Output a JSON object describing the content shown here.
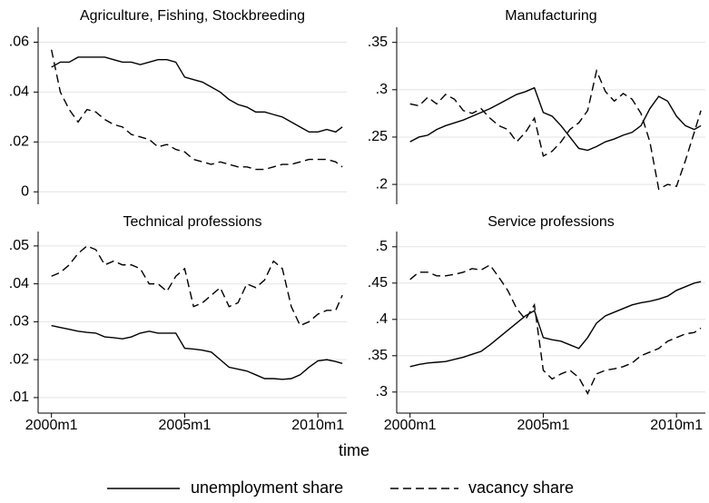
{
  "chart_data": [
    {
      "type": "line",
      "title": "Agriculture, Fishing, Stockbreeding",
      "x": [
        "2000m1",
        "2000m5",
        "2000m9",
        "2001m1",
        "2001m5",
        "2001m9",
        "2002m1",
        "2002m5",
        "2002m9",
        "2003m1",
        "2003m5",
        "2003m9",
        "2004m1",
        "2004m5",
        "2004m9",
        "2005m1",
        "2005m5",
        "2005m9",
        "2006m1",
        "2006m5",
        "2006m9",
        "2007m1",
        "2007m5",
        "2007m9",
        "2008m1",
        "2008m5",
        "2008m9",
        "2009m1",
        "2009m5",
        "2009m9",
        "2010m1",
        "2010m5",
        "2010m9",
        "2010m12"
      ],
      "xlim": [
        "1999m7",
        "2011m2"
      ],
      "ylim": [
        -0.005,
        0.066
      ],
      "yticks": [
        0,
        {
          "value": 0.02,
          "label": ".02"
        },
        {
          "value": 0.04,
          "label": ".04"
        },
        {
          "value": 0.06,
          "label": ".06"
        }
      ],
      "grid": true,
      "series": [
        {
          "name": "unemployment share",
          "color": "#000000",
          "line_style": "solid",
          "values": [
            0.05,
            0.052,
            0.052,
            0.054,
            0.054,
            0.054,
            0.054,
            0.053,
            0.052,
            0.052,
            0.051,
            0.052,
            0.053,
            0.053,
            0.052,
            0.046,
            0.045,
            0.044,
            0.042,
            0.04,
            0.037,
            0.035,
            0.034,
            0.032,
            0.032,
            0.031,
            0.03,
            0.028,
            0.026,
            0.024,
            0.024,
            0.025,
            0.024,
            0.026
          ]
        },
        {
          "name": "vacancy share",
          "color": "#000000",
          "line_style": "dashed",
          "values": [
            0.057,
            0.04,
            0.033,
            0.028,
            0.033,
            0.032,
            0.029,
            0.027,
            0.026,
            0.023,
            0.022,
            0.021,
            0.018,
            0.019,
            0.017,
            0.016,
            0.013,
            0.012,
            0.011,
            0.012,
            0.011,
            0.01,
            0.01,
            0.009,
            0.009,
            0.01,
            0.011,
            0.011,
            0.012,
            0.013,
            0.013,
            0.013,
            0.012,
            0.01
          ]
        }
      ]
    },
    {
      "type": "line",
      "title": "Manufacturing",
      "x": [
        "2000m1",
        "2000m5",
        "2000m9",
        "2001m1",
        "2001m5",
        "2001m9",
        "2002m1",
        "2002m5",
        "2002m9",
        "2003m1",
        "2003m5",
        "2003m9",
        "2004m1",
        "2004m5",
        "2004m9",
        "2005m1",
        "2005m5",
        "2005m9",
        "2006m1",
        "2006m5",
        "2006m9",
        "2007m1",
        "2007m5",
        "2007m9",
        "2008m1",
        "2008m5",
        "2008m9",
        "2009m1",
        "2009m5",
        "2009m9",
        "2010m1",
        "2010m5",
        "2010m9",
        "2010m12"
      ],
      "xlim": [
        "1999m7",
        "2011m2"
      ],
      "ylim": [
        0.179,
        0.366
      ],
      "yticks": [
        {
          "value": 0.2,
          "label": ".2"
        },
        {
          "value": 0.25,
          "label": ".25"
        },
        {
          "value": 0.3,
          "label": ".3"
        },
        {
          "value": 0.35,
          "label": ".35"
        }
      ],
      "grid": true,
      "series": [
        {
          "name": "unemployment share",
          "color": "#000000",
          "line_style": "solid",
          "values": [
            0.245,
            0.25,
            0.252,
            0.258,
            0.262,
            0.265,
            0.268,
            0.272,
            0.276,
            0.28,
            0.285,
            0.29,
            0.295,
            0.298,
            0.302,
            0.276,
            0.272,
            0.262,
            0.25,
            0.238,
            0.236,
            0.24,
            0.245,
            0.248,
            0.252,
            0.255,
            0.262,
            0.28,
            0.293,
            0.288,
            0.272,
            0.262,
            0.258,
            0.262
          ]
        },
        {
          "name": "vacancy share",
          "color": "#000000",
          "line_style": "dashed",
          "values": [
            0.285,
            0.283,
            0.292,
            0.285,
            0.295,
            0.29,
            0.278,
            0.275,
            0.28,
            0.27,
            0.262,
            0.258,
            0.245,
            0.255,
            0.27,
            0.23,
            0.235,
            0.245,
            0.258,
            0.265,
            0.278,
            0.32,
            0.298,
            0.288,
            0.296,
            0.29,
            0.275,
            0.245,
            0.195,
            0.2,
            0.198,
            0.225,
            0.255,
            0.278
          ]
        }
      ]
    },
    {
      "type": "line",
      "title": "Technical professions",
      "x": [
        "2000m1",
        "2000m5",
        "2000m9",
        "2001m1",
        "2001m5",
        "2001m9",
        "2002m1",
        "2002m5",
        "2002m9",
        "2003m1",
        "2003m5",
        "2003m9",
        "2004m1",
        "2004m5",
        "2004m9",
        "2005m1",
        "2005m5",
        "2005m9",
        "2006m1",
        "2006m5",
        "2006m9",
        "2007m1",
        "2007m5",
        "2007m9",
        "2008m1",
        "2008m5",
        "2008m9",
        "2009m1",
        "2009m5",
        "2009m9",
        "2010m1",
        "2010m5",
        "2010m9",
        "2010m12"
      ],
      "xlim": [
        "1999m7",
        "2011m2"
      ],
      "xticks": [
        "2000m1",
        "2005m1",
        "2010m1"
      ],
      "ylim": [
        0.0059,
        0.0538
      ],
      "yticks": [
        {
          "value": 0.01,
          "label": ".01"
        },
        {
          "value": 0.02,
          "label": ".02"
        },
        {
          "value": 0.03,
          "label": ".03"
        },
        {
          "value": 0.04,
          "label": ".04"
        },
        {
          "value": 0.05,
          "label": ".05"
        }
      ],
      "grid": true,
      "series": [
        {
          "name": "unemployment share",
          "color": "#000000",
          "line_style": "solid",
          "values": [
            0.029,
            0.0285,
            0.028,
            0.0275,
            0.0272,
            0.027,
            0.026,
            0.0258,
            0.0255,
            0.026,
            0.027,
            0.0275,
            0.027,
            0.027,
            0.027,
            0.023,
            0.0228,
            0.0225,
            0.022,
            0.02,
            0.018,
            0.0175,
            0.017,
            0.016,
            0.015,
            0.015,
            0.0148,
            0.015,
            0.016,
            0.018,
            0.0197,
            0.02,
            0.0195,
            0.019
          ]
        },
        {
          "name": "vacancy share",
          "color": "#000000",
          "line_style": "dashed",
          "values": [
            0.042,
            0.043,
            0.045,
            0.048,
            0.05,
            0.049,
            0.045,
            0.046,
            0.045,
            0.045,
            0.044,
            0.04,
            0.04,
            0.038,
            0.042,
            0.044,
            0.034,
            0.035,
            0.037,
            0.039,
            0.034,
            0.035,
            0.04,
            0.039,
            0.041,
            0.046,
            0.044,
            0.034,
            0.029,
            0.03,
            0.032,
            0.033,
            0.033,
            0.037
          ]
        }
      ]
    },
    {
      "type": "line",
      "title": "Service professions",
      "x": [
        "2000m1",
        "2000m5",
        "2000m9",
        "2001m1",
        "2001m5",
        "2001m9",
        "2002m1",
        "2002m5",
        "2002m9",
        "2003m1",
        "2003m5",
        "2003m9",
        "2004m1",
        "2004m5",
        "2004m9",
        "2005m1",
        "2005m5",
        "2005m9",
        "2006m1",
        "2006m5",
        "2006m9",
        "2007m1",
        "2007m5",
        "2007m9",
        "2008m1",
        "2008m5",
        "2008m9",
        "2009m1",
        "2009m5",
        "2009m9",
        "2010m1",
        "2010m5",
        "2010m9",
        "2010m12"
      ],
      "xlim": [
        "1999m7",
        "2011m2"
      ],
      "xticks": [
        "2000m1",
        "2005m1",
        "2010m1"
      ],
      "ylim": [
        0.271,
        0.521
      ],
      "yticks": [
        {
          "value": 0.3,
          "label": ".3"
        },
        {
          "value": 0.35,
          "label": ".35"
        },
        {
          "value": 0.4,
          "label": ".4"
        },
        {
          "value": 0.45,
          "label": ".45"
        },
        {
          "value": 0.5,
          "label": ".5"
        }
      ],
      "grid": true,
      "series": [
        {
          "name": "unemployment share",
          "color": "#000000",
          "line_style": "solid",
          "values": [
            0.335,
            0.338,
            0.34,
            0.341,
            0.342,
            0.345,
            0.348,
            0.352,
            0.356,
            0.365,
            0.375,
            0.385,
            0.395,
            0.405,
            0.412,
            0.375,
            0.372,
            0.37,
            0.365,
            0.36,
            0.375,
            0.395,
            0.405,
            0.41,
            0.415,
            0.42,
            0.423,
            0.425,
            0.428,
            0.432,
            0.44,
            0.445,
            0.45,
            0.452
          ]
        },
        {
          "name": "vacancy share",
          "color": "#000000",
          "line_style": "dashed",
          "values": [
            0.455,
            0.465,
            0.465,
            0.46,
            0.46,
            0.462,
            0.465,
            0.47,
            0.468,
            0.475,
            0.458,
            0.44,
            0.415,
            0.4,
            0.42,
            0.33,
            0.318,
            0.325,
            0.33,
            0.32,
            0.298,
            0.325,
            0.33,
            0.332,
            0.335,
            0.34,
            0.35,
            0.355,
            0.36,
            0.37,
            0.375,
            0.38,
            0.382,
            0.388
          ]
        }
      ]
    }
  ],
  "xlabel": "time"
}
